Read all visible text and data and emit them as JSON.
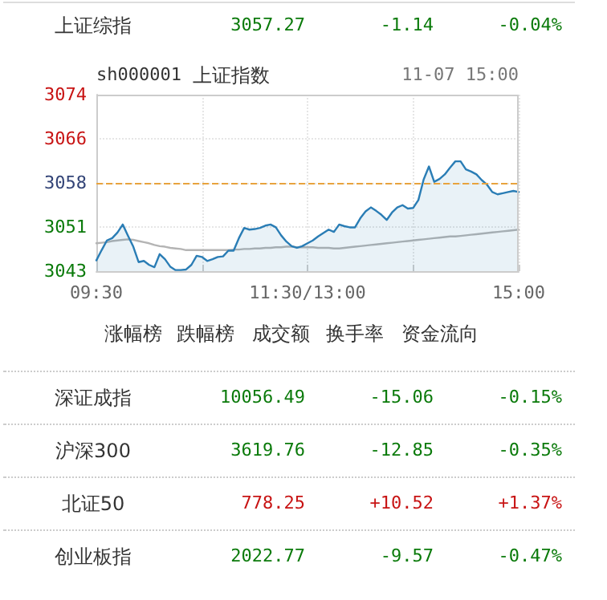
{
  "chart_data": {
    "type": "line",
    "title": "上证指数",
    "annotations": [
      "上证综指",
      "3057.27",
      "-1.14",
      "-0.04%",
      "sh000001",
      "11-07 15:00",
      "涨幅榜",
      "跌幅榜",
      "成交额",
      "换手率",
      "资金流向",
      "深证成指",
      "10056.49",
      "-15.06",
      "-0.15%",
      "沪深300",
      "3619.76",
      "-12.85",
      "-0.35%",
      "北证50",
      "778.25",
      "+10.52",
      "+1.37%",
      "创业板指",
      "2022.77",
      "-9.57",
      "-0.47%"
    ],
    "categories": [
      "09:30",
      null,
      null,
      null,
      null,
      null,
      null,
      null,
      null,
      null,
      null,
      null,
      null,
      null,
      null,
      null,
      null,
      null,
      null,
      null,
      null,
      null,
      null,
      null,
      null,
      null,
      null,
      null,
      null,
      null,
      null,
      null,
      null,
      null,
      null,
      null,
      null,
      null,
      null,
      null,
      "11:30/13:00",
      null,
      null,
      null,
      null,
      null,
      null,
      null,
      null,
      null,
      null,
      null,
      null,
      null,
      null,
      null,
      null,
      null,
      null,
      null,
      null,
      null,
      null,
      null,
      null,
      null,
      null,
      null,
      null,
      null,
      null,
      null,
      null,
      null,
      null,
      null,
      null,
      null,
      null,
      null,
      "15:00"
    ],
    "ylim": [
      3042.91,
      3073.91
    ],
    "yticks": [
      {
        "value": 3042.91,
        "label": "3043"
      },
      {
        "value": 3050.66,
        "label": "3051"
      },
      {
        "value": 3058.41,
        "label": "3058"
      },
      {
        "value": 3066.16,
        "label": "3066"
      },
      {
        "value": 3073.91,
        "label": "3074"
      }
    ],
    "grid": true,
    "marker": "none",
    "line_style": "solid",
    "ref_lines": [
      {
        "axis": "y",
        "value": 3058.41,
        "color": "#e8a33d",
        "line_style": "dashed"
      }
    ],
    "series": [
      {
        "type": "area",
        "color": "#2a7db5",
        "values": [
          3044.8,
          3046.6,
          3048.3,
          3048.7,
          3049.7,
          3051.1,
          3049.1,
          3047.2,
          3044.5,
          3044.7,
          3044.0,
          3043.6,
          3045.9,
          3045.0,
          3043.7,
          3043.1,
          3043.1,
          3043.2,
          3044.0,
          3045.6,
          3045.4,
          3044.7,
          3045.0,
          3045.4,
          3045.5,
          3046.5,
          3046.5,
          3048.7,
          3050.5,
          3050.2,
          3050.3,
          3050.5,
          3050.9,
          3051.1,
          3050.6,
          3049.2,
          3048.1,
          3047.3,
          3047.0,
          3047.3,
          3047.8,
          3048.3,
          3049.0,
          3049.6,
          3050.2,
          3049.8,
          3051.1,
          3050.8,
          3050.6,
          3050.6,
          3052.2,
          3053.4,
          3054.1,
          3053.5,
          3052.8,
          3051.9,
          3053.2,
          3054.1,
          3054.5,
          3053.9,
          3054.0,
          3055.4,
          3059.0,
          3061.3,
          3058.6,
          3059.1,
          3059.9,
          3061.1,
          3062.2,
          3062.2,
          3060.8,
          3060.4,
          3059.9,
          3058.9,
          3058.1,
          3056.8,
          3056.4,
          3056.6,
          3056.8,
          3057.0,
          3056.8
        ]
      },
      {
        "type": "line",
        "color": "#b4b4b4",
        "values": [
          3047.8,
          3047.9,
          3048.0,
          3048.2,
          3048.3,
          3048.4,
          3048.5,
          3048.4,
          3048.2,
          3048.0,
          3047.8,
          3047.5,
          3047.3,
          3047.2,
          3047.0,
          3046.9,
          3046.8,
          3046.6,
          3046.6,
          3046.6,
          3046.6,
          3046.6,
          3046.6,
          3046.6,
          3046.6,
          3046.6,
          3046.7,
          3046.7,
          3046.8,
          3046.8,
          3046.9,
          3046.9,
          3047.0,
          3047.0,
          3047.1,
          3047.1,
          3047.2,
          3047.2,
          3047.1,
          3047.1,
          3047.1,
          3047.1,
          3047.0,
          3047.0,
          3047.0,
          3046.9,
          3046.9,
          3047.0,
          3047.1,
          3047.2,
          3047.3,
          3047.4,
          3047.5,
          3047.6,
          3047.7,
          3047.8,
          3047.9,
          3048.0,
          3048.1,
          3048.2,
          3048.3,
          3048.4,
          3048.5,
          3048.6,
          3048.7,
          3048.8,
          3048.9,
          3049.0,
          3049.0,
          3049.1,
          3049.2,
          3049.3,
          3049.4,
          3049.5,
          3049.6,
          3049.7,
          3049.8,
          3049.9,
          3050.0,
          3050.1,
          3050.2
        ]
      }
    ]
  }
}
